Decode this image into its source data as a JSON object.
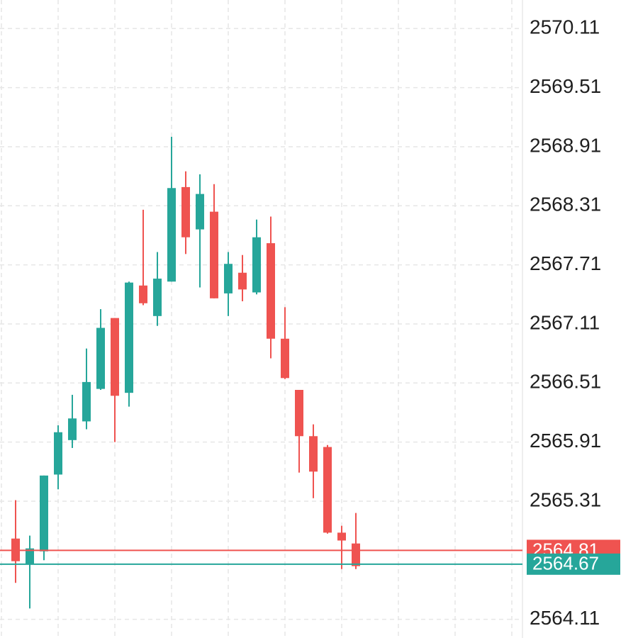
{
  "chart_data": {
    "type": "candlestick",
    "categories": [
      null,
      null,
      null,
      null,
      null,
      null,
      null,
      null,
      null,
      null,
      null,
      null,
      null,
      null,
      null,
      null,
      null,
      null,
      null,
      null,
      null,
      null,
      null,
      null,
      null
    ],
    "open": [
      2564.93,
      2564.67,
      2564.8,
      2565.58,
      2565.93,
      2566.12,
      2566.45,
      2567.17,
      2566.41,
      2567.5,
      2567.19,
      2567.54,
      2568.5,
      2568.07,
      2568.25,
      2567.42,
      2567.63,
      2567.43,
      2567.93,
      2566.96,
      2566.44,
      2565.97,
      2565.86,
      2564.99,
      2564.88
    ],
    "high": [
      2565.32,
      2564.96,
      2565.57,
      2566.08,
      2566.39,
      2566.86,
      2567.26,
      2567.17,
      2567.54,
      2568.27,
      2567.84,
      2569.01,
      2568.66,
      2568.63,
      2568.53,
      2567.84,
      2567.81,
      2568.17,
      2568.2,
      2567.28,
      2566.44,
      2566.09,
      2565.88,
      2565.06,
      2565.19
    ],
    "low": [
      2564.48,
      2564.22,
      2564.71,
      2565.43,
      2565.85,
      2566.04,
      2566.44,
      2565.91,
      2566.27,
      2567.3,
      2567.09,
      2567.54,
      2567.82,
      2567.48,
      2567.37,
      2567.19,
      2567.34,
      2567.41,
      2566.76,
      2566.55,
      2565.6,
      2565.34,
      2564.98,
      2564.62,
      2564.62
    ],
    "close": [
      2564.7,
      2564.83,
      2565.57,
      2566.01,
      2566.15,
      2566.52,
      2567.07,
      2566.38,
      2567.53,
      2567.32,
      2567.57,
      2568.49,
      2567.99,
      2568.43,
      2567.37,
      2567.72,
      2567.46,
      2567.99,
      2566.96,
      2566.56,
      2565.97,
      2565.61,
      2564.99,
      2564.91,
      2564.65
    ],
    "up_color": "#26a69a",
    "down_color": "#ef5350",
    "ylim": [
      2563.92,
      2570.4
    ],
    "yticks": [
      2570.11,
      2569.51,
      2568.91,
      2568.31,
      2567.71,
      2567.11,
      2566.51,
      2565.91,
      2565.31,
      2564.11
    ],
    "grid": true,
    "price_lines": [
      {
        "value": 2564.81,
        "color": "#ef5350"
      },
      {
        "value": 2564.67,
        "color": "#26a69a"
      }
    ]
  }
}
